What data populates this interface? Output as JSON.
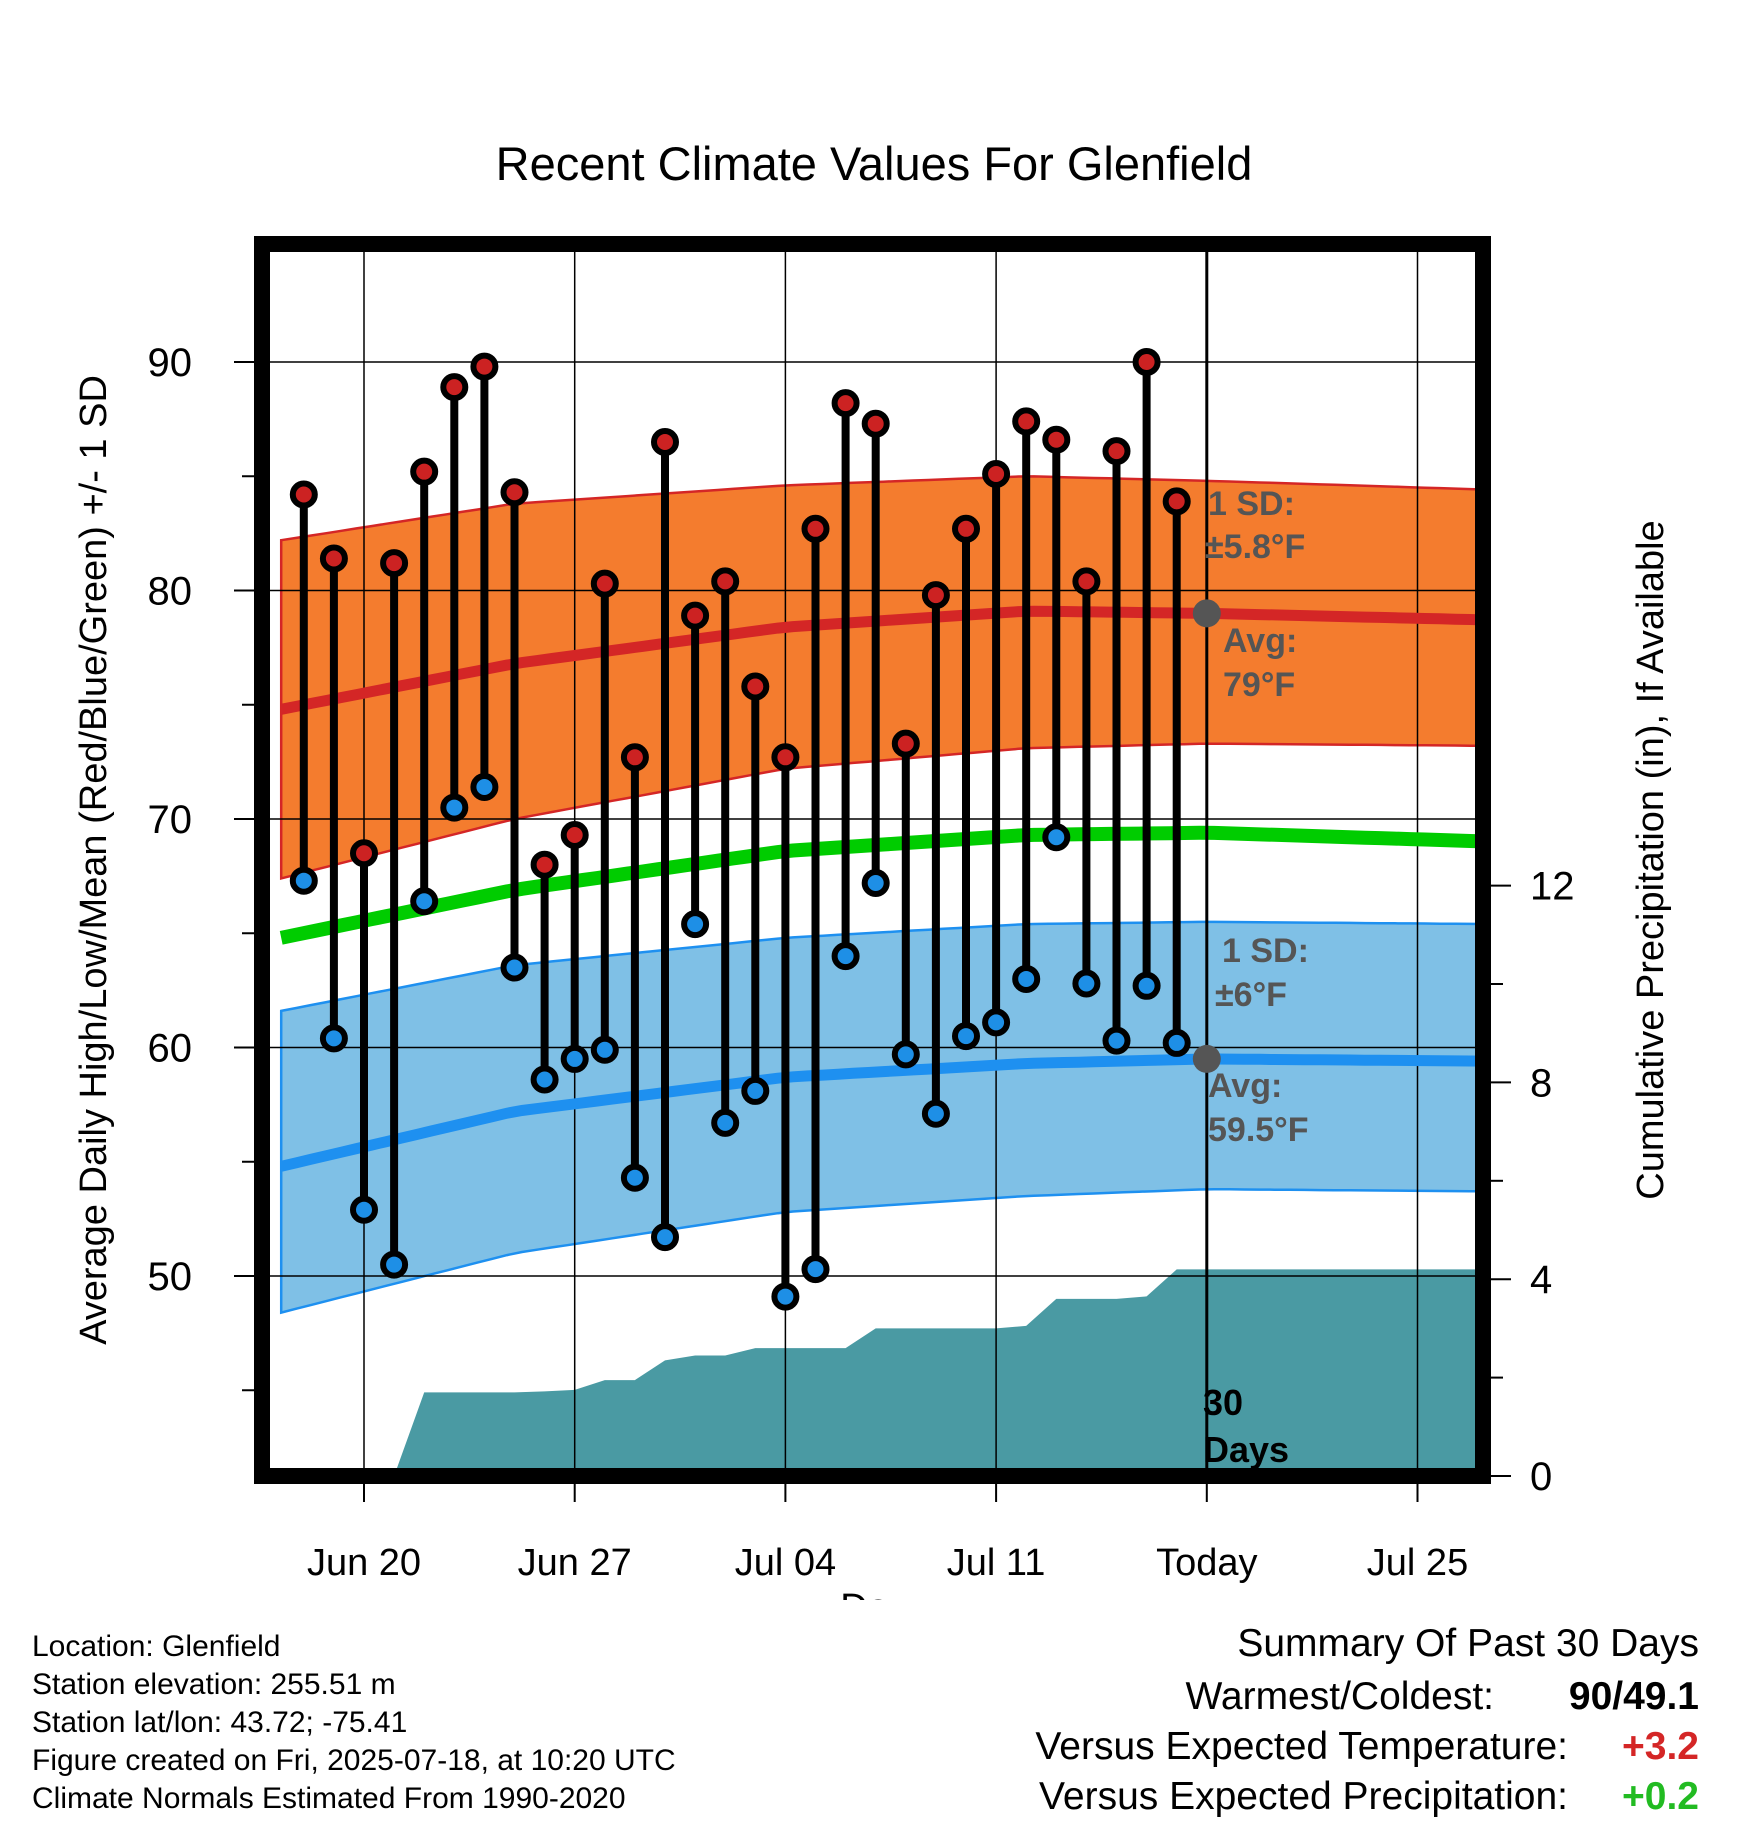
{
  "chart_data": {
    "type": "line",
    "title": "Recent Climate Values For Glenfield",
    "xlabel": "Day",
    "ylabel": "Average Daily High/Low/Mean (Red/Blue/Green) +/- 1 SD",
    "y2label": "Cumulative Precipitation (in), If Available",
    "ylim": [
      41,
      95
    ],
    "y2lim": [
      0,
      16
    ],
    "yticks": [
      50,
      60,
      70,
      80,
      90
    ],
    "y2ticks": [
      0,
      4,
      8,
      12
    ],
    "x_tick_labels": [
      "Jun 20",
      "Jun 27",
      "Jul 04",
      "Jul 11",
      "Today",
      "Jul 25"
    ],
    "x_tick_days": [
      3,
      10,
      17,
      24,
      31,
      38
    ],
    "xlim": [
      0.25,
      40.7
    ],
    "today_day": 31,
    "days": [
      1,
      2,
      3,
      4,
      5,
      6,
      7,
      8,
      9,
      10,
      11,
      12,
      13,
      14,
      15,
      16,
      17,
      18,
      19,
      20,
      21,
      22,
      23,
      24,
      25,
      26,
      27,
      28,
      29,
      30
    ],
    "highs": [
      84.2,
      81.4,
      68.5,
      81.2,
      85.2,
      88.9,
      89.8,
      84.3,
      68.0,
      69.3,
      80.3,
      72.7,
      86.5,
      78.9,
      80.4,
      75.8,
      72.7,
      82.7,
      88.2,
      87.3,
      73.3,
      79.8,
      82.7,
      85.1,
      87.4,
      86.6,
      80.4,
      86.1,
      90.0,
      83.9
    ],
    "lows": [
      67.3,
      60.4,
      52.9,
      50.5,
      66.4,
      70.5,
      71.4,
      63.5,
      58.6,
      59.5,
      59.9,
      54.3,
      51.7,
      65.4,
      56.7,
      58.1,
      49.1,
      50.3,
      64.0,
      67.2,
      59.7,
      57.1,
      60.5,
      61.1,
      63.0,
      69.2,
      62.8,
      60.3,
      62.7,
      60.2
    ],
    "precip_cumulative": [
      0,
      0,
      0,
      0,
      1.7,
      1.7,
      1.7,
      1.7,
      1.72,
      1.75,
      1.95,
      1.95,
      2.35,
      2.45,
      2.45,
      2.6,
      2.6,
      2.6,
      2.6,
      3.0,
      3.0,
      3.0,
      3.0,
      3.0,
      3.05,
      3.6,
      3.6,
      3.6,
      3.65,
      4.2,
      4.2,
      4.2,
      4.2,
      4.2,
      4.2,
      4.2,
      4.2,
      4.2,
      4.2,
      4.2,
      4.2
    ],
    "normals_x": [
      0.25,
      8,
      17,
      25,
      31,
      40.7
    ],
    "normal_high": [
      74.8,
      76.8,
      78.4,
      79.1,
      79.0,
      78.7
    ],
    "normal_high_upper": [
      82.2,
      83.8,
      84.6,
      85.0,
      84.8,
      84.4
    ],
    "normal_high_lower": [
      67.4,
      70.0,
      72.2,
      73.1,
      73.3,
      73.2
    ],
    "normal_mean": [
      64.8,
      66.9,
      68.6,
      69.3,
      69.4,
      69.0
    ],
    "normal_low": [
      54.8,
      57.2,
      58.7,
      59.3,
      59.5,
      59.4
    ],
    "normal_low_upper": [
      61.6,
      63.6,
      64.8,
      65.4,
      65.5,
      65.4
    ],
    "normal_low_lower": [
      48.4,
      51.0,
      52.8,
      53.5,
      53.8,
      53.7
    ],
    "annotations": {
      "high_sd_line1": "1 SD:",
      "high_sd_line2": "±5.8°F",
      "high_avg_line1": "Avg:",
      "high_avg_line2": "79°F",
      "low_sd_line1": "1 SD:",
      "low_sd_line2": "±6°F",
      "low_avg_line1": "Avg:",
      "low_avg_line2": "59.5°F",
      "days_line1": "30",
      "days_line2": "Days"
    },
    "colors": {
      "high_band": "#f47c2e",
      "high_line": "#d42626",
      "low_band": "#7fc0e6",
      "low_line": "#1e90f0",
      "mean_line": "#00cc00",
      "precip": "#4a9aa3",
      "high_dot": "#cc2222",
      "low_dot": "#1e8fe6",
      "annotation": "#555555",
      "positive_temp": "#d42626",
      "positive_precip": "#22bb22"
    },
    "grid": true
  },
  "info": {
    "location": "Location: Glenfield",
    "elevation": "Station elevation: 255.51 m",
    "latlon": "Station lat/lon: 43.72; -75.41",
    "created": "Figure created on Fri, 2025-07-18, at 10:20 UTC",
    "normals": "Climate Normals Estimated From 1990-2020"
  },
  "summary": {
    "title": "Summary Of Past 30 Days",
    "warmest_label": "Warmest/Coldest:",
    "warmest_value": "90/49.1",
    "temp_label": "Versus Expected Temperature:",
    "temp_value": "+3.2",
    "precip_label": "Versus Expected Precipitation:",
    "precip_value": "+0.2"
  }
}
